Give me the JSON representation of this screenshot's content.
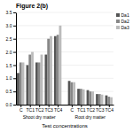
{
  "chart_data": {
    "type": "bar",
    "title": "Figure 2(b)",
    "xlabel": "Test concentrations",
    "annotations": [
      "Shoot dry matter",
      "Root dry matter"
    ],
    "categories": [
      "C",
      "TC1",
      "TC2",
      "TC3",
      "TC4",
      "C",
      "TC1",
      "TC2",
      "TC3",
      "TC4"
    ],
    "series": [
      {
        "name": "Da1",
        "color": "#555555",
        "values": [
          1.2,
          1.5,
          1.6,
          1.9,
          2.6,
          0.9,
          0.6,
          0.55,
          0.4,
          0.35
        ]
      },
      {
        "name": "Da2",
        "color": "#888888",
        "values": [
          1.6,
          1.9,
          1.6,
          2.5,
          2.65,
          0.85,
          0.6,
          0.5,
          0.4,
          0.3
        ]
      },
      {
        "name": "Da3",
        "color": "#bbbbbb",
        "values": [
          1.6,
          2.0,
          1.9,
          2.6,
          3.0,
          0.85,
          0.58,
          0.5,
          0.38,
          0.28
        ]
      }
    ],
    "ylim": [
      0,
      3.5
    ],
    "yticks": [
      {
        "value": 0,
        "label": "0.0"
      },
      0.5,
      {
        "value": 1.0,
        "label": "1.0"
      },
      1.5,
      {
        "value": 2.0,
        "label": "2.0"
      },
      2.5,
      {
        "value": 3.0,
        "label": "3.0"
      },
      3.5
    ],
    "grid": true,
    "legend": "right"
  }
}
